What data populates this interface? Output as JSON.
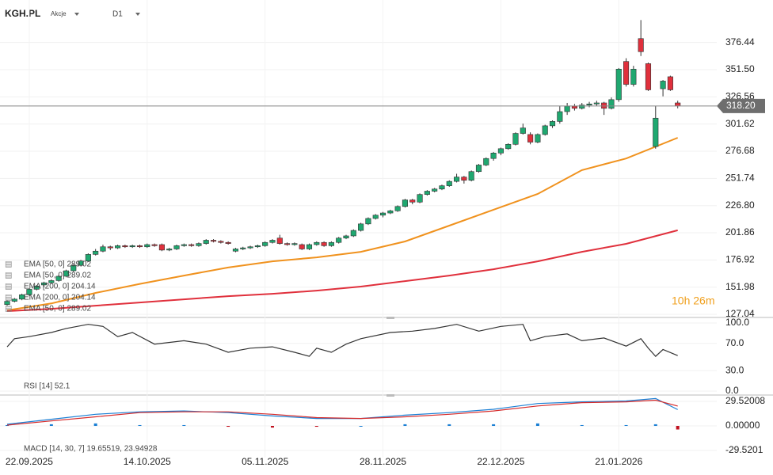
{
  "header": {
    "symbol": "KGH.PL",
    "asset_class": "Akcje",
    "interval": "D1"
  },
  "countdown": "10h 26m",
  "chart_data": [
    {
      "type": "candlestick",
      "ylim": [
        124.9,
        415.4
      ],
      "xlim": [
        -0.97,
        96.3
      ],
      "up_color": "#1fa870",
      "down_color": "#e0303c",
      "grid": true,
      "yticks": [
        {
          "value": 376.44,
          "label": "376.44"
        },
        {
          "value": 351.5,
          "label": "351.50"
        },
        {
          "value": 326.56,
          "label": "326.56"
        },
        {
          "value": 301.62,
          "label": "301.62"
        },
        {
          "value": 276.68,
          "label": "276.68"
        },
        {
          "value": 251.74,
          "label": "251.74"
        },
        {
          "value": 226.8,
          "label": "226.80"
        },
        {
          "value": 201.86,
          "label": "201.86"
        },
        {
          "value": 176.92,
          "label": "176.92"
        },
        {
          "value": 151.98,
          "label": "151.98"
        },
        {
          "value": 127.04,
          "label": "127.04"
        }
      ],
      "last_price": {
        "value": 318.2,
        "label": "318.20"
      },
      "date_labels": [
        {
          "value": 3,
          "label": "22.09.2025"
        },
        {
          "value": 19,
          "label": "14.10.2025"
        },
        {
          "value": 35,
          "label": "05.11.2025"
        },
        {
          "value": 51,
          "label": "28.11.2025"
        },
        {
          "value": 67,
          "label": "22.12.2025"
        },
        {
          "value": 83,
          "label": "21.01.2026"
        }
      ],
      "indicator_legend": [
        "EMA [50, 0] 289.02",
        "EMA [50, 0] 289.02",
        "EMA [200, 0] 204.14",
        "EMA [200, 0] 204.14",
        "EMA [50, 0] 289.02"
      ],
      "candles": [
        [
          136,
          140,
          135,
          139
        ],
        [
          139,
          142,
          138,
          141
        ],
        [
          141,
          146,
          140,
          145
        ],
        [
          145,
          151,
          144,
          150
        ],
        [
          150,
          154,
          149,
          153
        ],
        [
          154,
          157,
          152,
          156
        ],
        [
          156,
          159,
          155,
          158
        ],
        [
          158,
          163,
          157,
          162
        ],
        [
          162,
          168,
          161,
          167
        ],
        [
          167,
          173,
          166,
          172
        ],
        [
          172,
          177,
          171,
          176
        ],
        [
          176,
          183,
          175,
          182
        ],
        [
          182,
          187,
          181,
          185
        ],
        [
          185,
          191,
          184,
          189
        ],
        [
          189,
          190,
          186,
          188
        ],
        [
          188,
          191,
          187,
          190
        ],
        [
          190,
          191,
          188,
          189
        ],
        [
          189,
          191,
          188,
          190
        ],
        [
          190,
          191,
          188,
          189
        ],
        [
          189,
          192,
          188,
          191
        ],
        [
          191,
          192,
          189,
          190
        ],
        [
          191,
          192,
          185,
          186
        ],
        [
          186,
          188,
          185,
          187
        ],
        [
          187,
          191,
          186,
          190
        ],
        [
          190,
          192,
          189,
          191
        ],
        [
          191,
          192,
          189,
          190
        ],
        [
          190,
          193,
          189,
          192
        ],
        [
          192,
          196,
          191,
          195
        ],
        [
          195,
          196,
          193,
          194
        ],
        [
          194,
          195,
          192,
          193
        ],
        [
          193,
          194,
          191,
          192
        ],
        [
          185,
          188,
          184,
          187
        ],
        [
          187,
          189,
          186,
          188
        ],
        [
          188,
          190,
          187,
          189
        ],
        [
          189,
          191,
          188,
          190
        ],
        [
          190,
          194,
          189,
          193
        ],
        [
          193,
          196,
          192,
          195
        ],
        [
          197,
          200,
          191,
          192
        ],
        [
          192,
          193,
          190,
          191
        ],
        [
          191,
          193,
          190,
          192
        ],
        [
          191,
          192,
          186,
          187
        ],
        [
          187,
          192,
          186,
          191
        ],
        [
          191,
          194,
          190,
          193
        ],
        [
          193,
          194,
          189,
          190
        ],
        [
          190,
          194,
          189,
          193
        ],
        [
          193,
          198,
          192,
          197
        ],
        [
          197,
          200,
          196,
          199
        ],
        [
          199,
          205,
          198,
          204
        ],
        [
          204,
          211,
          203,
          210
        ],
        [
          210,
          216,
          209,
          215
        ],
        [
          215,
          219,
          214,
          218
        ],
        [
          218,
          221,
          216,
          220
        ],
        [
          220,
          223,
          219,
          222
        ],
        [
          222,
          227,
          221,
          226
        ],
        [
          226,
          233,
          225,
          232
        ],
        [
          232,
          233,
          228,
          230
        ],
        [
          230,
          238,
          229,
          237
        ],
        [
          237,
          241,
          236,
          240
        ],
        [
          240,
          243,
          239,
          242
        ],
        [
          242,
          246,
          241,
          245
        ],
        [
          245,
          250,
          244,
          249
        ],
        [
          249,
          256,
          248,
          253
        ],
        [
          253,
          254,
          247,
          250
        ],
        [
          250,
          259,
          249,
          258
        ],
        [
          258,
          265,
          257,
          264
        ],
        [
          264,
          271,
          263,
          270
        ],
        [
          270,
          276,
          268,
          275
        ],
        [
          275,
          280,
          273,
          279
        ],
        [
          279,
          284,
          278,
          283
        ],
        [
          283,
          294,
          282,
          293
        ],
        [
          293,
          302,
          292,
          298
        ],
        [
          292,
          294,
          283,
          285
        ],
        [
          285,
          293,
          284,
          292
        ],
        [
          292,
          301,
          291,
          300
        ],
        [
          300,
          305,
          298,
          304
        ],
        [
          304,
          318,
          302,
          313
        ],
        [
          313,
          321,
          310,
          318
        ],
        [
          318,
          320,
          314,
          316
        ],
        [
          316,
          321,
          315,
          319
        ],
        [
          319,
          322,
          317,
          320
        ],
        [
          320,
          323,
          318,
          321
        ],
        [
          321,
          322,
          310,
          316
        ],
        [
          316,
          326,
          315,
          324
        ],
        [
          324,
          353,
          322,
          352
        ],
        [
          359,
          362,
          336,
          338
        ],
        [
          338,
          355,
          336,
          352
        ],
        [
          380,
          397,
          364,
          368
        ],
        [
          357,
          358,
          332,
          333
        ],
        [
          281,
          318,
          279,
          307
        ],
        [
          334,
          342,
          327,
          341
        ],
        [
          345,
          346,
          332,
          333
        ],
        [
          321,
          323,
          316,
          318.2
        ]
      ],
      "series": [
        {
          "name": "EMA [50, 0]",
          "color": "#f0921e",
          "x": [
            0,
            6,
            12,
            18,
            24,
            30,
            36,
            42,
            48,
            54,
            60,
            66,
            72,
            78,
            84,
            91
          ],
          "values": [
            130.7,
            137,
            146.7,
            155,
            162.6,
            170,
            175.7,
            179.3,
            184.4,
            193.9,
            208.4,
            223,
            237.5,
            259.3,
            270,
            289.02
          ]
        },
        {
          "name": "EMA [200, 0]",
          "color": "#e0303c",
          "x": [
            0,
            6,
            12,
            18,
            24,
            30,
            36,
            42,
            48,
            54,
            60,
            66,
            72,
            78,
            84,
            91
          ],
          "values": [
            130,
            132.1,
            135,
            137.9,
            140.8,
            143.7,
            145.9,
            148.8,
            152.5,
            157.5,
            162.6,
            168.4,
            175.7,
            184.4,
            191.7,
            204.14
          ]
        }
      ]
    },
    {
      "type": "line",
      "ylim": [
        -4.7,
        107
      ],
      "xlim": [
        -0.97,
        96.3
      ],
      "yticks": [
        {
          "value": 100,
          "label": "100.0"
        },
        {
          "value": 70,
          "label": "70.0"
        },
        {
          "value": 30,
          "label": "30.0"
        },
        {
          "value": 0,
          "label": "0.0"
        }
      ],
      "legend": "RSI [14] 52.1",
      "series": [
        {
          "name": "RSI [14]",
          "color": "#333333",
          "x": [
            0,
            1,
            3,
            6,
            8,
            11,
            13,
            15,
            17,
            20,
            24,
            27,
            30,
            33,
            36,
            39,
            41,
            42,
            44,
            46,
            48,
            52,
            55,
            58,
            61,
            64,
            67,
            70,
            71,
            73,
            76,
            78,
            81,
            84,
            86,
            87,
            88,
            89,
            91
          ],
          "values": [
            65,
            77,
            80,
            86,
            92,
            98,
            95,
            80,
            86,
            69,
            74,
            69,
            57,
            63,
            65,
            57,
            51,
            63,
            57,
            69,
            77,
            86,
            88,
            92,
            98,
            88,
            95,
            98,
            74,
            80,
            84,
            74,
            78,
            66,
            77,
            63,
            51,
            61,
            52.1
          ]
        }
      ]
    },
    {
      "type": "macd",
      "ylim": [
        -38.1,
        36.2
      ],
      "xlim": [
        -0.97,
        96.3
      ],
      "yticks": [
        {
          "value": 29.52008,
          "label": "29.52008"
        },
        {
          "value": 0,
          "label": "0.00000"
        },
        {
          "value": -29.5201,
          "label": "-29.5201"
        }
      ],
      "legend": "MACD [14, 30, 7] 19.65519, 23.94928",
      "pos_color": "#1a7fd4",
      "neg_color": "#c0101e",
      "histogram": {
        "x": [
          0,
          6,
          12,
          18,
          24,
          30,
          36,
          42,
          48,
          54,
          60,
          66,
          72,
          78,
          84,
          88,
          91
        ],
        "values": [
          1,
          2,
          3,
          1,
          1,
          -1,
          -2,
          -1,
          0,
          2,
          2,
          2,
          3,
          1,
          1,
          2,
          -4.3
        ]
      },
      "series": [
        {
          "name": "MACD",
          "color": "#1a7fd4",
          "x": [
            0,
            6,
            12,
            18,
            24,
            30,
            36,
            42,
            48,
            54,
            60,
            66,
            72,
            78,
            84,
            88,
            91
          ],
          "values": [
            2,
            8,
            14,
            17,
            18,
            16,
            12,
            9,
            9,
            13,
            16,
            20,
            27,
            29,
            30,
            33,
            19.66
          ]
        },
        {
          "name": "Signal",
          "color": "#d62c2c",
          "x": [
            0,
            6,
            12,
            18,
            24,
            30,
            36,
            42,
            48,
            54,
            60,
            66,
            72,
            78,
            84,
            88,
            91
          ],
          "values": [
            1,
            6,
            11,
            16,
            17,
            17,
            14,
            10,
            9,
            11,
            14,
            18,
            24,
            28,
            29,
            31,
            23.95
          ]
        }
      ]
    }
  ]
}
